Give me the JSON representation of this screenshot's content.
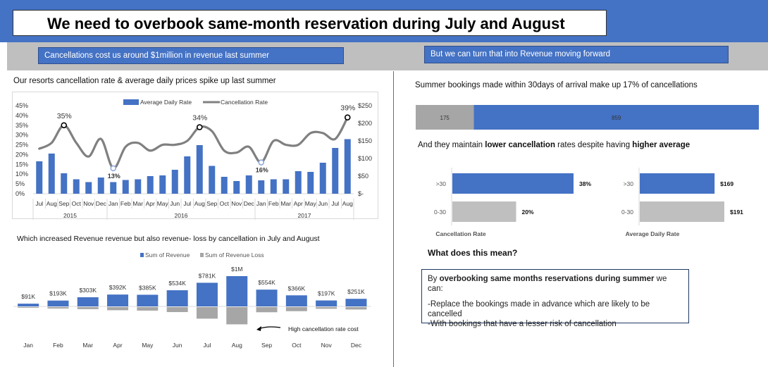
{
  "title": "We need to overbook same-month reservation during July and August",
  "banner_left": "Cancellations cost us around $1million in revenue last summer",
  "banner_right": "But we can turn that into Revenue moving forward",
  "colors": {
    "blue": "#4472c4",
    "grey": "#a6a6a6",
    "line": "#808080"
  },
  "chart_data": [
    {
      "id": "combo",
      "type": "bar",
      "title": "Our resorts cancellation rate & average daily prices spike up last summer",
      "months": [
        "Jul",
        "Aug",
        "Sep",
        "Oct",
        "Nov",
        "Dec",
        "Jan",
        "Feb",
        "Mar",
        "Apr",
        "May",
        "Jun",
        "Jul",
        "Aug",
        "Sep",
        "Oct",
        "Nov",
        "Dec",
        "Jan",
        "Feb",
        "Mar",
        "Apr",
        "May",
        "Jun",
        "Jul",
        "Aug"
      ],
      "years": [
        {
          "label": "2015",
          "start": 0,
          "end": 5
        },
        {
          "label": "2016",
          "start": 6,
          "end": 17
        },
        {
          "label": "2017",
          "start": 18,
          "end": 25
        }
      ],
      "series": [
        {
          "name": "Average Daily Rate",
          "type": "bar",
          "axis": "right",
          "values": [
            92,
            114,
            58,
            41,
            33,
            46,
            33,
            39,
            41,
            50,
            52,
            68,
            106,
            138,
            79,
            48,
            36,
            52,
            38,
            41,
            41,
            64,
            62,
            88,
            130,
            155
          ]
        },
        {
          "name": "Cancellation Rate",
          "type": "line",
          "axis": "left",
          "values": [
            0.23,
            0.26,
            0.35,
            0.26,
            0.19,
            0.28,
            0.13,
            0.24,
            0.26,
            0.22,
            0.25,
            0.25,
            0.27,
            0.34,
            0.32,
            0.22,
            0.21,
            0.24,
            0.16,
            0.27,
            0.25,
            0.25,
            0.31,
            0.31,
            0.28,
            0.39
          ]
        }
      ],
      "annotations": [
        {
          "index": 2,
          "label": "35%"
        },
        {
          "index": 6,
          "label": "13%"
        },
        {
          "index": 13,
          "label": "34%"
        },
        {
          "index": 18,
          "label": "16%"
        },
        {
          "index": 25,
          "label": "39%"
        }
      ],
      "y_left_ticks": [
        "0%",
        "5%",
        "10%",
        "15%",
        "20%",
        "25%",
        "30%",
        "35%",
        "40%",
        "45%"
      ],
      "y_right_ticks": [
        "$-",
        "$50",
        "$100",
        "$150",
        "$200",
        "$250"
      ],
      "ylim_left": [
        0,
        0.45
      ],
      "ylim_right": [
        0,
        250
      ],
      "legend_position": "top"
    },
    {
      "id": "revenue",
      "type": "bar",
      "title": "Which increased Revenue revenue but also revenue- loss by cancellation in July and August",
      "categories": [
        "Jan",
        "Feb",
        "Mar",
        "Apr",
        "May",
        "Jun",
        "Jul",
        "Aug",
        "Sep",
        "Oct",
        "Nov",
        "Dec"
      ],
      "series": [
        {
          "name": "Sum of Revenue",
          "values": [
            91,
            193,
            303,
            392,
            385,
            534,
            781,
            1000,
            554,
            366,
            197,
            251
          ],
          "labels": [
            "$91K",
            "$193K",
            "$303K",
            "$392K",
            "$385K",
            "$534K",
            "$781K",
            "$1M",
            "$554K",
            "$366K",
            "$197K",
            "$251K"
          ]
        },
        {
          "name": "Sum of Revenue Loss",
          "values": [
            -20,
            -38,
            -55,
            -85,
            -95,
            -135,
            -315,
            -470,
            -140,
            -110,
            -45,
            -65
          ]
        }
      ],
      "annotation": "High cancellation rate cost",
      "legend_position": "top"
    },
    {
      "id": "stacked",
      "type": "bar",
      "title": "Summer bookings made within 30days of arrival make up 17% of cancellations",
      "series": [
        {
          "name": "",
          "values": [
            175
          ]
        },
        {
          "name": "",
          "values": [
            859
          ]
        }
      ]
    },
    {
      "id": "cancel_rate",
      "type": "bar",
      "xlabel": "Cancellation Rate",
      "categories": [
        ">30",
        "0-30"
      ],
      "values": [
        0.38,
        0.2
      ],
      "labels": [
        "38%",
        "20%"
      ]
    },
    {
      "id": "adr",
      "type": "bar",
      "xlabel": "Average Daily Rate",
      "categories": [
        ">30",
        "0-30"
      ],
      "values": [
        169,
        191
      ],
      "labels": [
        "$169",
        "$191"
      ]
    }
  ],
  "lower_rate_text": {
    "a": "And they maintain ",
    "b": "lower cancellation",
    "c": " rates despite having ",
    "d": "higher average"
  },
  "question": "What does this mean?",
  "recommendation": {
    "p1_a": "By ",
    "p1_b": "overbooking same months reservations during summer",
    "p1_c": " we can:",
    "l1": "-Replace the bookings made in advance which are likely to be cancelled",
    "l2": "-With bookings that have a lesser risk of cancellation"
  }
}
